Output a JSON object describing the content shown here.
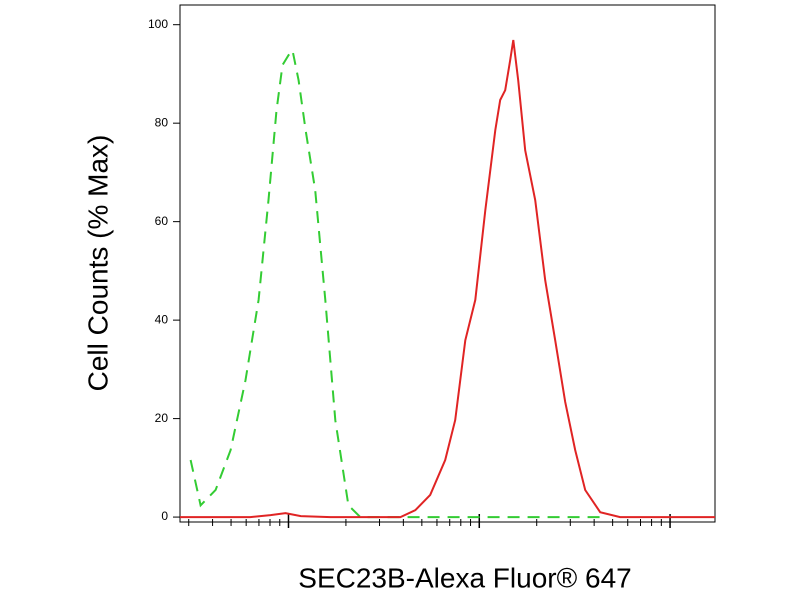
{
  "chart_data": {
    "type": "line",
    "y_label": "Cell Counts (% Max)",
    "x_label": "SEC23B-Alexa Fluor® 647",
    "xscale": "log",
    "xlim": [
      27,
      17200
    ],
    "xticks": [
      100,
      1000,
      10000
    ],
    "xminorticks": [
      30,
      40,
      50,
      60,
      70,
      80,
      90,
      200,
      300,
      400,
      500,
      600,
      700,
      800,
      900,
      2000,
      3000,
      4000,
      5000,
      6000,
      7000,
      8000,
      9000
    ],
    "ylim": [
      -1,
      104
    ],
    "yticks": [
      0,
      20,
      40,
      60,
      80,
      100
    ],
    "series": [
      {
        "color": "#33cc33",
        "dash": true,
        "x": [
          30.7,
          34.6,
          41.5,
          49.7,
          59.5,
          69.7,
          78.6,
          86.5,
          93,
          100,
          105,
          113,
          123,
          138,
          156,
          176,
          206,
          238,
          386,
          4300
        ],
        "values": [
          11.6,
          2.4,
          5.5,
          13.6,
          27.8,
          44.1,
          64.4,
          82.6,
          91.8,
          93.8,
          94.8,
          88.7,
          78.6,
          66.4,
          44.1,
          19.7,
          2.4,
          0,
          0,
          0
        ]
      },
      {
        "color": "#e02424",
        "dash": false,
        "x": [
          27,
          63,
          80.5,
          96.4,
          116,
          166,
          386,
          462,
          553,
          663,
          748,
          845,
          953,
          1075,
          1213,
          1288,
          1368,
          1453,
          1507,
          1600,
          1741,
          1963,
          2217,
          2500,
          2820,
          3183,
          3590,
          4305,
          5470,
          17200
        ],
        "values": [
          0,
          0,
          0.4,
          0.8,
          0.2,
          0,
          0,
          1.4,
          4.5,
          11.6,
          19.7,
          35.9,
          44.1,
          62.3,
          78.6,
          84.7,
          86.7,
          92.8,
          96.9,
          88.7,
          74.5,
          64.4,
          48.1,
          35.9,
          23.4,
          13.6,
          5.5,
          1.0,
          0,
          0
        ]
      }
    ]
  }
}
